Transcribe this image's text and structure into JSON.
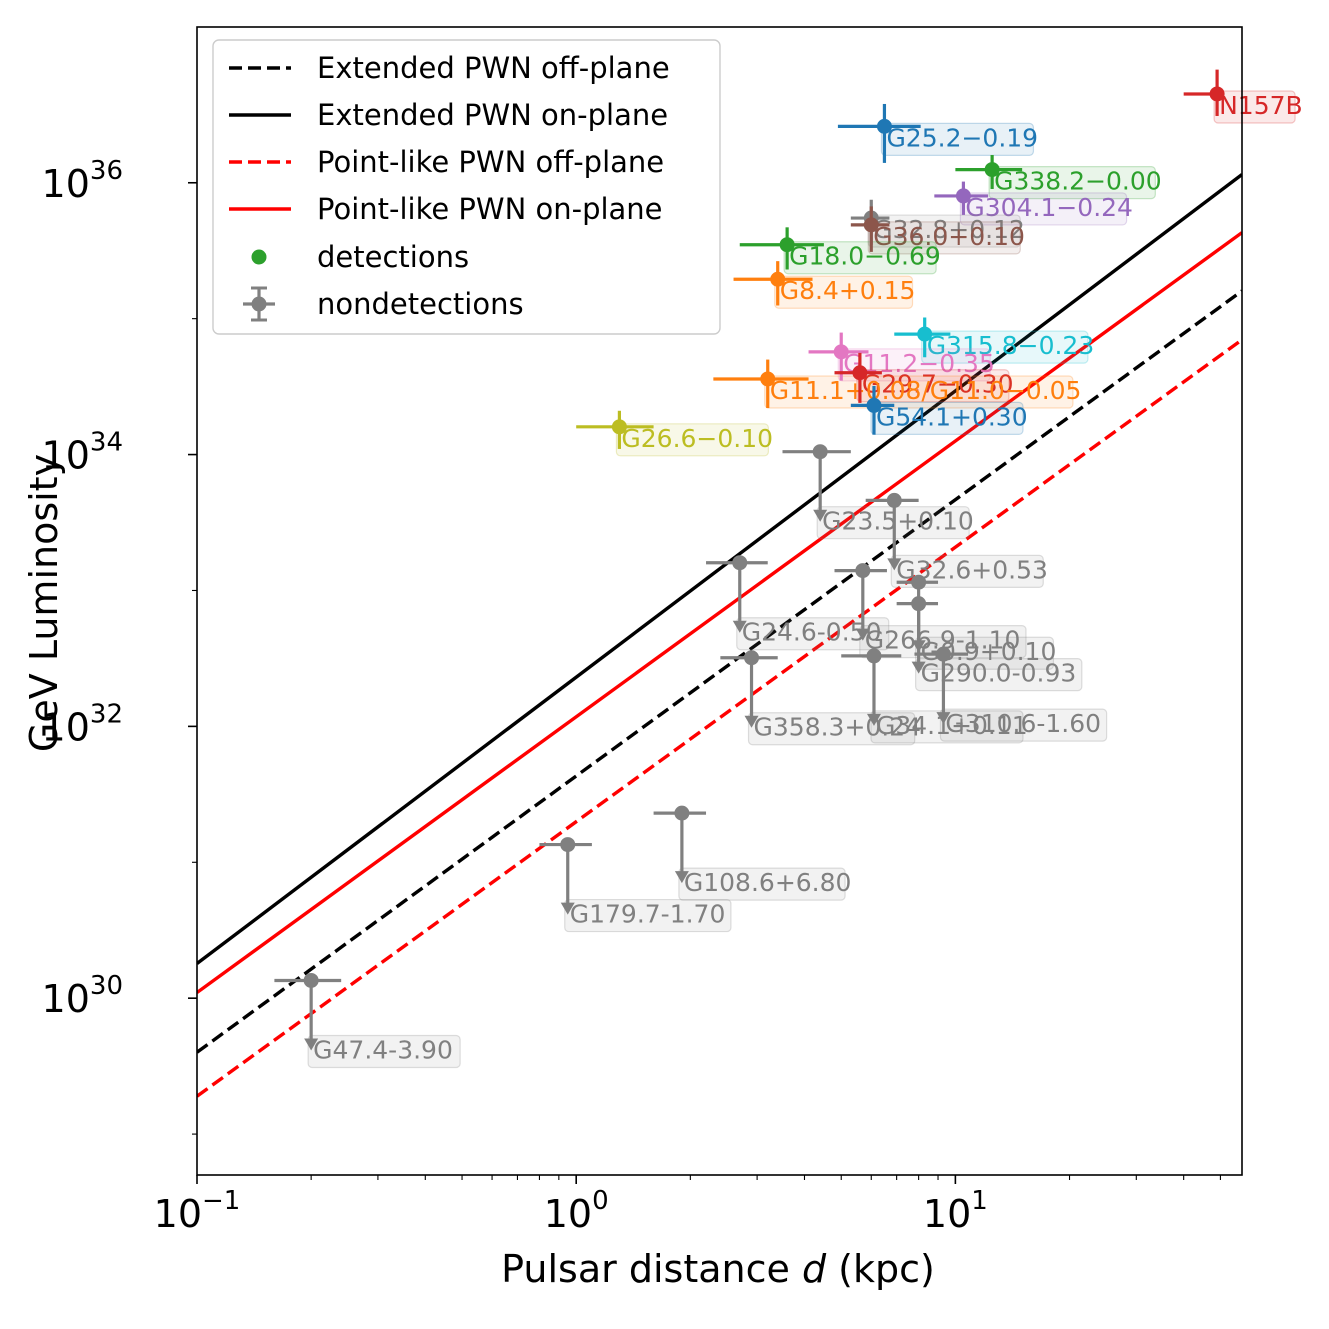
{
  "chart_data": {
    "type": "scatter",
    "xlabel": "Pulsar distance d (kpc)",
    "xlabel_prefix": "Pulsar distance ",
    "xlabel_var": "d",
    "xlabel_suffix": " (kpc)",
    "ylabel": "GeV Luminosity",
    "x_scale": "log",
    "y_scale": "log",
    "xlim": [
      0.1,
      57
    ],
    "ylim": [
      5e+28,
      1.4e+37
    ],
    "x_ticks": [
      {
        "value": 0.1,
        "base": "10",
        "exp": "−1"
      },
      {
        "value": 1,
        "base": "10",
        "exp": "0"
      },
      {
        "value": 10,
        "base": "10",
        "exp": "1"
      }
    ],
    "y_ticks": [
      {
        "value": 1e+30,
        "base": "10",
        "exp": "30"
      },
      {
        "value": 1e+32,
        "base": "10",
        "exp": "32"
      },
      {
        "value": 1e+34,
        "base": "10",
        "exp": "34"
      },
      {
        "value": 1e+36,
        "base": "10",
        "exp": "36"
      }
    ],
    "grid": false,
    "legend_position": "top-left",
    "lines": [
      {
        "name": "Extended PWN off-plane",
        "color": "#000000",
        "style": "dashed",
        "points": [
          [
            0.1,
            4e+29
          ],
          [
            57,
            1.6e+35
          ]
        ]
      },
      {
        "name": "Extended PWN on-plane",
        "color": "#000000",
        "style": "solid",
        "points": [
          [
            0.1,
            1.8e+30
          ],
          [
            57,
            1.15e+36
          ]
        ]
      },
      {
        "name": "Point-like PWN off-plane",
        "color": "#ff0000",
        "style": "dashed",
        "points": [
          [
            0.1,
            1.9e+29
          ],
          [
            57,
            7e+34
          ]
        ]
      },
      {
        "name": "Point-like PWN on-plane",
        "color": "#ff0000",
        "style": "solid",
        "points": [
          [
            0.1,
            1.1e+30
          ],
          [
            57,
            4.3e+35
          ]
        ]
      }
    ],
    "legend_markers": [
      {
        "name": "detections",
        "color": "#2ca02c"
      },
      {
        "name": "nondetections",
        "color": "#808080"
      }
    ],
    "detections": [
      {
        "label": "N157B",
        "x": 49,
        "y": 4.5e+36,
        "xerr": [
          9,
          0
        ],
        "yerr": [
          1.4e+36,
          2.3e+36
        ],
        "color": "#d62728"
      },
      {
        "label": "G25.2−0.19",
        "x": 6.5,
        "y": 2.6e+36,
        "xerr": [
          1.6,
          1.6
        ],
        "yerr": [
          1.2e+36,
          1.2e+36
        ],
        "color": "#1f77b4"
      },
      {
        "label": "G338.2−0.00",
        "x": 12.5,
        "y": 1.25e+36,
        "xerr": [
          2.5,
          2.5
        ],
        "yerr": [
          3.5e+35,
          3.5e+35
        ],
        "color": "#2ca02c"
      },
      {
        "label": "G304.1−0.24",
        "x": 10.5,
        "y": 8e+35,
        "xerr": [
          1.7,
          1.7
        ],
        "yerr": [
          2.2e+35,
          2.2e+35
        ],
        "color": "#9467bd"
      },
      {
        "label": "G32.8+0.12",
        "x": 6.0,
        "y": 5.5e+35,
        "xerr": [
          0.7,
          0.7
        ],
        "yerr": [
          2e+35,
          2e+35
        ],
        "color": "#808080"
      },
      {
        "label": "G36.0+0.10",
        "x": 6.0,
        "y": 4.9e+35,
        "xerr": [
          0.7,
          0.7
        ],
        "yerr": [
          1.8e+35,
          1.8e+35
        ],
        "color": "#8c564b"
      },
      {
        "label": "G18.0−0.69",
        "x": 3.6,
        "y": 3.5e+35,
        "xerr": [
          0.9,
          0.9
        ],
        "yerr": [
          1.2e+35,
          1.2e+35
        ],
        "color": "#2ca02c"
      },
      {
        "label": "G8.4+0.15",
        "x": 3.4,
        "y": 1.95e+35,
        "xerr": [
          0.8,
          0.8
        ],
        "yerr": [
          7e+34,
          7e+34
        ],
        "color": "#ff7f0e"
      },
      {
        "label": "G315.8−0.23",
        "x": 8.3,
        "y": 7.7e+34,
        "xerr": [
          1.4,
          1.4
        ],
        "yerr": [
          2.5e+34,
          2.5e+34
        ],
        "color": "#17becf"
      },
      {
        "label": "G11.2−0.35",
        "x": 5.0,
        "y": 5.7e+34,
        "xerr": [
          0.9,
          0.9
        ],
        "yerr": [
          2.2e+34,
          2.2e+34
        ],
        "color": "#e377c2"
      },
      {
        "label": "G29.7−0.30",
        "x": 5.6,
        "y": 4e+34,
        "xerr": [
          0.8,
          0.8
        ],
        "yerr": [
          1.6e+34,
          1.6e+34
        ],
        "color": "#d62728"
      },
      {
        "label": "G11.1+0.08/G11.0−0.05",
        "x": 3.2,
        "y": 3.6e+34,
        "xerr": [
          0.9,
          0.9
        ],
        "yerr": [
          1.4e+34,
          1.4e+34
        ],
        "color": "#ff7f0e"
      },
      {
        "label": "G26.6−0.10",
        "x": 1.3,
        "y": 1.6e+34,
        "xerr": [
          0.3,
          0.3
        ],
        "yerr": [
          5e+33,
          5e+33
        ],
        "color": "#bcbd22"
      },
      {
        "label": "G54.1+0.30",
        "x": 6.1,
        "y": 2.3e+34,
        "xerr": [
          0.8,
          0.8
        ],
        "yerr": [
          9e+33,
          9e+33
        ],
        "color": "#1f77b4"
      }
    ],
    "nondetections": [
      {
        "label": "G23.5+0.10",
        "x": 4.4,
        "y": 1.05e+34,
        "xerr": [
          0.9,
          0.9
        ],
        "color": "#808080"
      },
      {
        "label": "G32.6+0.53",
        "x": 6.9,
        "y": 4.6e+33,
        "xerr": [
          1.1,
          1.1
        ],
        "color": "#808080"
      },
      {
        "label": "G24.6-0.50",
        "x": 2.7,
        "y": 1.6e+33,
        "xerr": [
          0.5,
          0.5
        ],
        "color": "#808080"
      },
      {
        "label": "G266.9-1.10",
        "x": 5.7,
        "y": 1.4e+33,
        "xerr": [
          0.9,
          0.9
        ],
        "color": "#808080"
      },
      {
        "label": "G0.9+0.10",
        "x": 8.0,
        "y": 1.15e+33,
        "xerr": [
          1.0,
          1.0
        ],
        "color": "#808080"
      },
      {
        "label": "G290.0-0.93",
        "x": 8.0,
        "y": 8e+32,
        "xerr": [
          1.0,
          1.0
        ],
        "color": "#808080"
      },
      {
        "label": "G358.3+0.24",
        "x": 2.9,
        "y": 3.2e+32,
        "xerr": [
          0.5,
          0.5
        ],
        "color": "#808080"
      },
      {
        "label": "G34.1+0.11",
        "x": 6.1,
        "y": 3.3e+32,
        "xerr": [
          1.1,
          1.1
        ],
        "color": "#808080"
      },
      {
        "label": "G310.6-1.60",
        "x": 9.3,
        "y": 3.4e+32,
        "xerr": [
          1.5,
          1.5
        ],
        "color": "#808080"
      },
      {
        "label": "G108.6+6.80",
        "x": 1.9,
        "y": 2.3e+31,
        "xerr": [
          0.3,
          0.3
        ],
        "color": "#808080"
      },
      {
        "label": "G179.7-1.70",
        "x": 0.95,
        "y": 1.35e+31,
        "xerr": [
          0.15,
          0.15
        ],
        "color": "#808080"
      },
      {
        "label": "G47.4-3.90",
        "x": 0.2,
        "y": 1.35e+30,
        "xerr": [
          0.04,
          0.04
        ],
        "color": "#808080"
      }
    ]
  }
}
